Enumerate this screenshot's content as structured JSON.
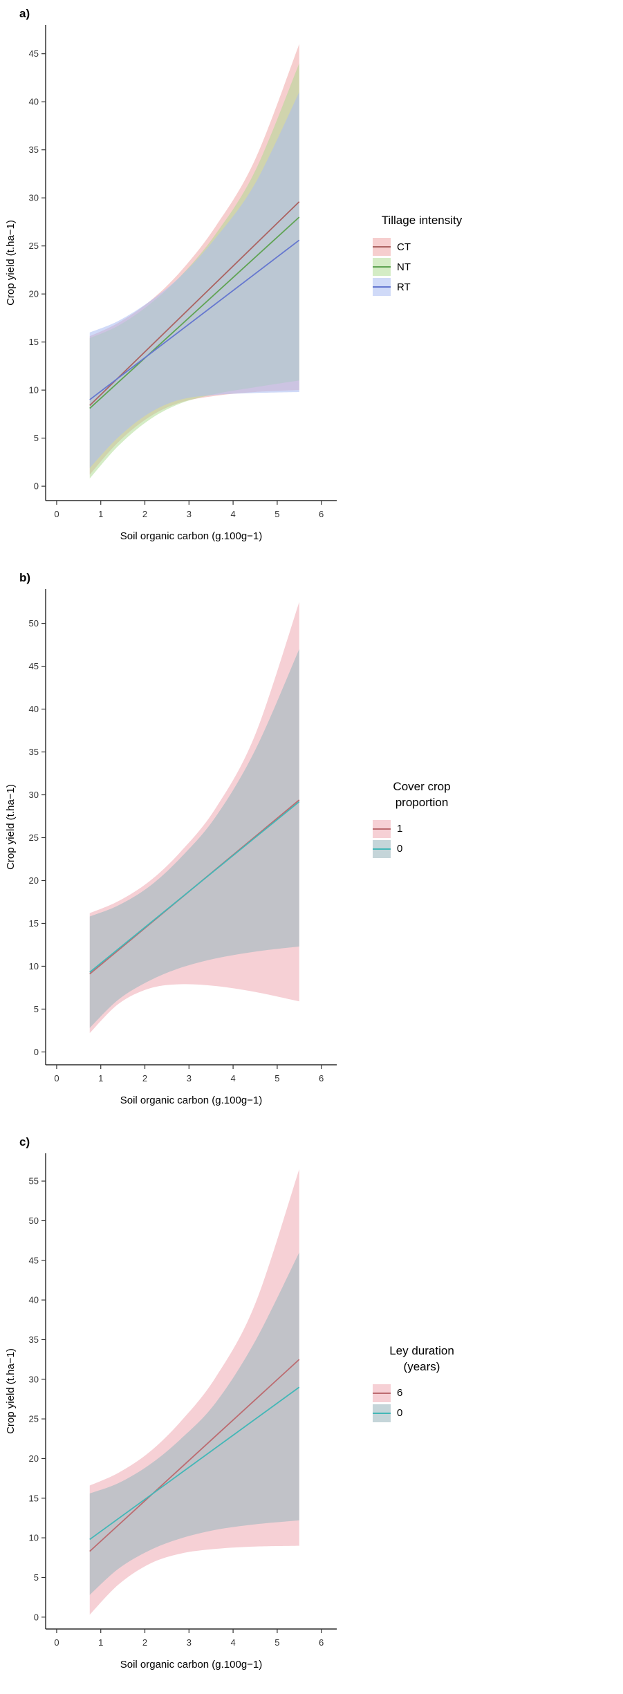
{
  "figure_title": "",
  "chart_data": [
    {
      "type": "line",
      "panel_label": "a)",
      "xlabel": "Soil organic carbon (g.100g−1)",
      "ylabel": "Crop yield (t.ha−1)",
      "xlim": [
        -0.25,
        6.35
      ],
      "ylim": [
        -1.5,
        48
      ],
      "xticks": [
        0,
        1,
        2,
        3,
        4,
        5,
        6
      ],
      "yticks": [
        0,
        5,
        10,
        15,
        20,
        25,
        30,
        35,
        40,
        45
      ],
      "grid": false,
      "legend": {
        "title": "Tillage intensity",
        "position": "right"
      },
      "ribbon_x": [
        0.75,
        1.4,
        2.1,
        2.8,
        3.6,
        4.5,
        5.5
      ],
      "series": [
        {
          "name": "CT",
          "color": "#ab6361",
          "fill": "#ee9d9d",
          "fill_opacity": 0.5,
          "line": {
            "x": [
              0.75,
              5.5
            ],
            "y": [
              8.4,
              29.6
            ]
          },
          "lower": [
            1.2,
            4.6,
            7.2,
            8.7,
            9.4,
            9.8,
            10.0
          ],
          "upper": [
            15.6,
            17.0,
            19.2,
            22.3,
            27.0,
            34.0,
            46.0
          ]
        },
        {
          "name": "NT",
          "color": "#5fa353",
          "fill": "#a9d98b",
          "fill_opacity": 0.5,
          "line": {
            "x": [
              0.75,
              5.5
            ],
            "y": [
              8.1,
              28.0
            ]
          },
          "lower": [
            0.8,
            4.2,
            6.9,
            8.6,
            9.6,
            10.3,
            11.0
          ],
          "upper": [
            15.4,
            16.7,
            18.9,
            21.8,
            26.2,
            32.8,
            44.0
          ]
        },
        {
          "name": "RT",
          "color": "#6577cf",
          "fill": "#a9bbf2",
          "fill_opacity": 0.55,
          "line": {
            "x": [
              0.75,
              5.5
            ],
            "y": [
              9.0,
              25.6
            ]
          },
          "lower": [
            1.9,
            5.1,
            7.6,
            9.0,
            9.5,
            9.7,
            9.8
          ],
          "upper": [
            16.0,
            17.2,
            19.2,
            21.8,
            25.8,
            31.5,
            41.0
          ]
        }
      ]
    },
    {
      "type": "line",
      "panel_label": "b)",
      "xlabel": "Soil organic carbon (g.100g−1)",
      "ylabel": "Crop yield (t.ha−1)",
      "xlim": [
        -0.25,
        6.35
      ],
      "ylim": [
        -1.5,
        54
      ],
      "xticks": [
        0,
        1,
        2,
        3,
        4,
        5,
        6
      ],
      "yticks": [
        0,
        5,
        10,
        15,
        20,
        25,
        30,
        35,
        40,
        45,
        50
      ],
      "grid": false,
      "legend": {
        "title": "Cover crop proportion",
        "position": "right"
      },
      "ribbon_x": [
        0.75,
        1.4,
        2.1,
        2.8,
        3.6,
        4.5,
        5.5
      ],
      "series": [
        {
          "name": "1",
          "color": "#bc6b70",
          "fill": "#efaab2",
          "fill_opacity": 0.55,
          "line": {
            "x": [
              0.75,
              5.5
            ],
            "y": [
              9.1,
              29.4
            ]
          },
          "lower": [
            2.2,
            5.6,
            7.4,
            7.9,
            7.7,
            7.0,
            5.9
          ],
          "upper": [
            16.2,
            17.6,
            19.9,
            23.3,
            28.4,
            37.0,
            52.5
          ]
        },
        {
          "name": "0",
          "color": "#43b7b7",
          "fill": "#9fb9c0",
          "fill_opacity": 0.6,
          "line": {
            "x": [
              0.75,
              5.5
            ],
            "y": [
              9.3,
              29.2
            ]
          },
          "lower": [
            2.8,
            6.1,
            8.3,
            9.8,
            10.9,
            11.7,
            12.3
          ],
          "upper": [
            15.8,
            17.1,
            19.3,
            22.6,
            27.4,
            35.2,
            47.0
          ]
        }
      ]
    },
    {
      "type": "line",
      "panel_label": "c)",
      "xlabel": "Soil organic carbon (g.100g−1)",
      "ylabel": "Crop yield (t.ha−1)",
      "xlim": [
        -0.25,
        6.35
      ],
      "ylim": [
        -1.5,
        58.5
      ],
      "xticks": [
        0,
        1,
        2,
        3,
        4,
        5,
        6
      ],
      "yticks": [
        0,
        5,
        10,
        15,
        20,
        25,
        30,
        35,
        40,
        45,
        50,
        55
      ],
      "grid": false,
      "legend": {
        "title": "Ley duration (years)",
        "position": "right"
      },
      "ribbon_x": [
        0.75,
        1.4,
        2.1,
        2.8,
        3.6,
        4.5,
        5.5
      ],
      "series": [
        {
          "name": "6",
          "color": "#bc6b70",
          "fill": "#efaab2",
          "fill_opacity": 0.55,
          "line": {
            "x": [
              0.75,
              5.5
            ],
            "y": [
              8.3,
              32.5
            ]
          },
          "lower": [
            0.3,
            4.1,
            6.7,
            8.0,
            8.6,
            8.9,
            9.0
          ],
          "upper": [
            16.6,
            18.2,
            20.8,
            24.6,
            30.2,
            39.5,
            56.5
          ]
        },
        {
          "name": "0",
          "color": "#43b7b7",
          "fill": "#9fb9c0",
          "fill_opacity": 0.6,
          "line": {
            "x": [
              0.75,
              5.5
            ],
            "y": [
              9.8,
              29.0
            ]
          },
          "lower": [
            2.8,
            6.1,
            8.4,
            9.9,
            11.0,
            11.7,
            12.2
          ],
          "upper": [
            15.6,
            16.9,
            19.2,
            22.4,
            27.0,
            34.8,
            46.0
          ]
        }
      ]
    }
  ]
}
